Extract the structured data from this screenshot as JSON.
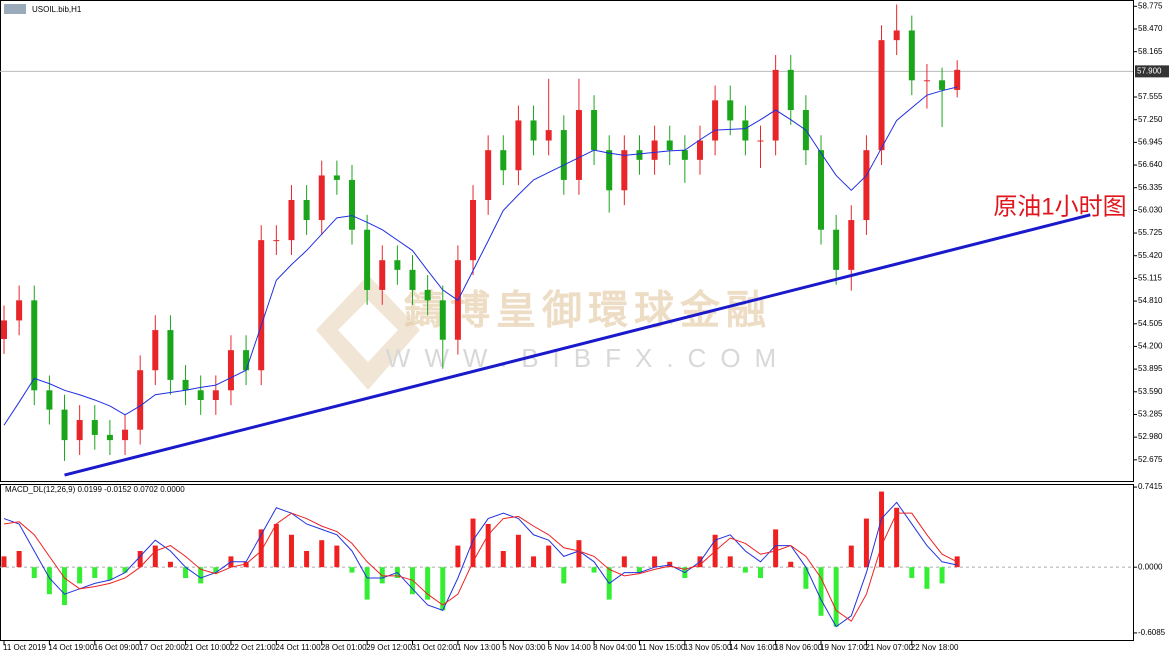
{
  "chart_data": [
    {
      "type": "candlestick",
      "title": "USOIL.bib,H1",
      "categories": [
        "11 Oct 2019",
        null,
        null,
        "14 Oct 19:00",
        null,
        null,
        "16 Oct 09:00",
        null,
        null,
        "17 Oct 20:00",
        null,
        null,
        "21 Oct 10:00",
        null,
        null,
        "22 Oct 21:00",
        null,
        null,
        "24 Oct 11:00",
        null,
        null,
        "28 Oct 01:00",
        null,
        null,
        "29 Oct 12:00",
        null,
        null,
        "31 Oct 02:00",
        null,
        null,
        "1 Nov 13:00",
        null,
        null,
        "5 Nov 03:00",
        null,
        null,
        "6 Nov 14:00",
        null,
        null,
        "8 Nov 04:00",
        null,
        null,
        "11 Nov 15:00",
        null,
        null,
        "13 Nov 05:00",
        null,
        null,
        "14 Nov 16:00",
        null,
        null,
        "18 Nov 06:00",
        null,
        null,
        "19 Nov 17:00",
        null,
        null,
        "21 Nov 07:00",
        null,
        null,
        "22 Nov 18:00",
        null,
        null,
        null
      ],
      "open": [
        54.3,
        54.55,
        54.82,
        53.61,
        53.35,
        52.94,
        53.21,
        53.01,
        52.94,
        53.08,
        53.88,
        54.42,
        53.75,
        53.61,
        53.48,
        53.61,
        54.15,
        53.88,
        55.63,
        55.63,
        56.17,
        55.9,
        56.5,
        56.44,
        55.77,
        54.96,
        55.36,
        55.23,
        54.96,
        54.82,
        54.29,
        55.36,
        56.17,
        56.84,
        56.57,
        57.24,
        56.97,
        57.11,
        56.44,
        57.38,
        56.84,
        56.3,
        56.84,
        56.71,
        56.97,
        56.84,
        56.71,
        56.97,
        57.51,
        57.24,
        56.97,
        56.97,
        57.92,
        57.38,
        56.84,
        55.77,
        55.23,
        55.9,
        56.84,
        58.32,
        58.45,
        57.78,
        57.78,
        57.65
      ],
      "high": [
        54.75,
        55.02,
        55.02,
        53.81,
        53.55,
        53.41,
        53.41,
        53.21,
        53.28,
        54.08,
        54.62,
        54.62,
        53.95,
        53.81,
        53.81,
        54.35,
        54.35,
        55.83,
        55.83,
        56.37,
        56.37,
        56.7,
        56.7,
        56.64,
        55.97,
        55.56,
        55.56,
        55.43,
        55.16,
        55.02,
        55.56,
        56.37,
        57.04,
        57.04,
        57.44,
        57.44,
        57.8,
        57.31,
        57.8,
        57.58,
        57.04,
        57.04,
        57.04,
        57.17,
        57.17,
        57.04,
        57.17,
        57.71,
        57.71,
        57.44,
        57.17,
        58.12,
        58.12,
        57.58,
        57.04,
        55.97,
        56.1,
        57.04,
        58.52,
        58.8,
        58.65,
        58.0,
        57.95,
        58.05
      ],
      "low": [
        54.1,
        54.35,
        53.41,
        53.15,
        52.66,
        52.74,
        52.81,
        52.74,
        52.74,
        52.88,
        53.68,
        53.55,
        53.41,
        53.28,
        53.28,
        53.41,
        53.68,
        53.68,
        55.43,
        55.43,
        55.7,
        55.7,
        56.24,
        55.57,
        54.76,
        54.76,
        55.03,
        54.76,
        54.62,
        53.9,
        54.09,
        55.16,
        55.97,
        56.37,
        56.37,
        56.77,
        56.77,
        56.24,
        56.24,
        56.64,
        56.0,
        56.1,
        56.51,
        56.51,
        56.64,
        56.4,
        56.51,
        56.77,
        57.04,
        56.77,
        56.6,
        56.77,
        57.18,
        56.64,
        55.57,
        55.03,
        54.95,
        55.7,
        56.64,
        58.12,
        57.58,
        57.4,
        57.15,
        57.55
      ],
      "close": [
        54.55,
        54.82,
        53.61,
        53.35,
        52.94,
        53.21,
        53.01,
        52.94,
        53.08,
        53.88,
        54.42,
        53.75,
        53.61,
        53.48,
        53.61,
        54.15,
        53.88,
        55.63,
        55.63,
        56.17,
        55.9,
        56.5,
        56.44,
        55.77,
        54.96,
        55.36,
        55.23,
        54.96,
        54.82,
        54.29,
        55.36,
        56.17,
        56.84,
        56.57,
        57.24,
        56.97,
        57.11,
        56.44,
        57.38,
        56.84,
        56.3,
        56.84,
        56.71,
        56.97,
        56.84,
        56.71,
        56.97,
        57.51,
        57.24,
        56.97,
        56.97,
        57.92,
        57.38,
        56.84,
        55.77,
        55.23,
        55.9,
        56.84,
        58.32,
        58.45,
        57.78,
        57.78,
        57.65,
        57.92
      ],
      "up_color": "#e8262a",
      "down_color": "#1aa51a",
      "ma": {
        "color": "#1f2ee0",
        "values": [
          53.14,
          53.45,
          53.77,
          53.7,
          53.61,
          53.55,
          53.48,
          53.4,
          53.28,
          53.4,
          53.55,
          53.58,
          53.61,
          53.65,
          53.68,
          53.78,
          53.88,
          54.48,
          55.09,
          55.3,
          55.49,
          55.71,
          55.93,
          55.96,
          55.87,
          55.77,
          55.63,
          55.49,
          55.22,
          54.96,
          54.82,
          55.22,
          55.62,
          56.03,
          56.24,
          56.44,
          56.54,
          56.64,
          56.74,
          56.84,
          56.8,
          56.77,
          56.79,
          56.81,
          56.83,
          56.84,
          56.98,
          57.11,
          57.12,
          57.13,
          57.25,
          57.38,
          57.25,
          57.11,
          56.8,
          56.5,
          56.3,
          56.5,
          56.87,
          57.24,
          57.41,
          57.58,
          57.64,
          57.69
        ]
      },
      "ylim": [
        52.39,
        58.86
      ],
      "yticks": [
        52.675,
        {
          "value": 52.98,
          "label": "52.980"
        },
        53.285,
        {
          "value": 53.59,
          "label": "53.590"
        },
        53.895,
        {
          "value": 54.2,
          "label": "54.200"
        },
        54.505,
        {
          "value": 54.81,
          "label": "54.810"
        },
        55.115,
        {
          "value": 55.42,
          "label": "55.420"
        },
        55.725,
        {
          "value": 56.03,
          "label": "56.030"
        },
        56.335,
        {
          "value": 56.64,
          "label": "56.640"
        },
        56.945,
        {
          "value": 57.25,
          "label": "57.250"
        },
        57.555,
        58.165,
        {
          "value": 58.47,
          "label": "58.470"
        },
        58.775
      ],
      "price_line": {
        "value": 57.9,
        "label": "57.900"
      },
      "trendline": {
        "x": [
          4,
          71.8
        ],
        "y": [
          52.47,
          55.97
        ],
        "color": "#1a1acc"
      },
      "annotation": {
        "text": "原油1小时图",
        "color": "#e0161c"
      }
    },
    {
      "type": "macd",
      "title": "MACD_DL(12,26,9) 0.0199 -0.0152 0.0702 0.0000",
      "histogram": {
        "up_color": "#ee2020",
        "down_color": "#33ee33",
        "values": [
          0.1,
          0.15,
          -0.1,
          -0.25,
          -0.35,
          -0.15,
          -0.1,
          -0.12,
          -0.05,
          0.15,
          0.2,
          0.05,
          -0.1,
          -0.15,
          -0.05,
          0.1,
          0.05,
          0.35,
          0.4,
          0.3,
          0.15,
          0.25,
          0.2,
          -0.05,
          -0.3,
          -0.15,
          -0.1,
          -0.25,
          -0.3,
          -0.4,
          0.2,
          0.45,
          0.4,
          0.15,
          0.3,
          0.1,
          0.2,
          -0.15,
          0.25,
          -0.05,
          -0.3,
          0.1,
          -0.05,
          0.1,
          0.05,
          -0.1,
          0.1,
          0.3,
          0.1,
          -0.05,
          -0.1,
          0.35,
          0.05,
          -0.2,
          -0.45,
          -0.55,
          0.2,
          0.45,
          0.7,
          0.55,
          -0.1,
          -0.2,
          -0.15,
          0.1
        ]
      },
      "macd": {
        "color": "#2233dd",
        "values": [
          0.45,
          0.4,
          0.15,
          -0.1,
          -0.25,
          -0.2,
          -0.15,
          -0.12,
          -0.05,
          0.1,
          0.25,
          0.15,
          0.0,
          -0.1,
          -0.05,
          0.05,
          0.05,
          0.3,
          0.55,
          0.5,
          0.4,
          0.35,
          0.3,
          0.15,
          -0.1,
          -0.1,
          -0.05,
          -0.2,
          -0.35,
          -0.4,
          -0.1,
          0.25,
          0.45,
          0.5,
          0.45,
          0.3,
          0.25,
          0.1,
          0.15,
          0.05,
          -0.15,
          -0.05,
          -0.05,
          0.0,
          0.02,
          -0.05,
          0.05,
          0.25,
          0.3,
          0.15,
          0.05,
          0.2,
          0.2,
          0.0,
          -0.3,
          -0.55,
          -0.45,
          -0.05,
          0.45,
          0.6,
          0.4,
          0.2,
          0.05,
          0.02
        ]
      },
      "signal": {
        "color": "#ee2222",
        "values": [
          0.4,
          0.42,
          0.3,
          0.1,
          -0.1,
          -0.2,
          -0.18,
          -0.15,
          -0.1,
          0.0,
          0.15,
          0.2,
          0.1,
          -0.02,
          -0.06,
          0.0,
          0.03,
          0.15,
          0.4,
          0.5,
          0.45,
          0.38,
          0.33,
          0.22,
          0.05,
          -0.08,
          -0.08,
          -0.12,
          -0.25,
          -0.35,
          -0.25,
          0.05,
          0.3,
          0.45,
          0.47,
          0.38,
          0.3,
          0.18,
          0.15,
          0.1,
          -0.02,
          -0.08,
          -0.06,
          -0.02,
          0.01,
          -0.02,
          0.02,
          0.15,
          0.27,
          0.22,
          0.12,
          0.15,
          0.2,
          0.1,
          -0.1,
          -0.4,
          -0.5,
          -0.25,
          0.2,
          0.5,
          0.5,
          0.3,
          0.12,
          0.05
        ]
      },
      "ylim": [
        -0.674,
        0.77
      ],
      "yticks": [
        -0.6085,
        {
          "value": 0,
          "label": "0.0000"
        },
        0.7415
      ]
    }
  ],
  "watermark": {
    "text": "鑄博皇御環球金融",
    "url": "WWW.BIBFX.COM"
  }
}
